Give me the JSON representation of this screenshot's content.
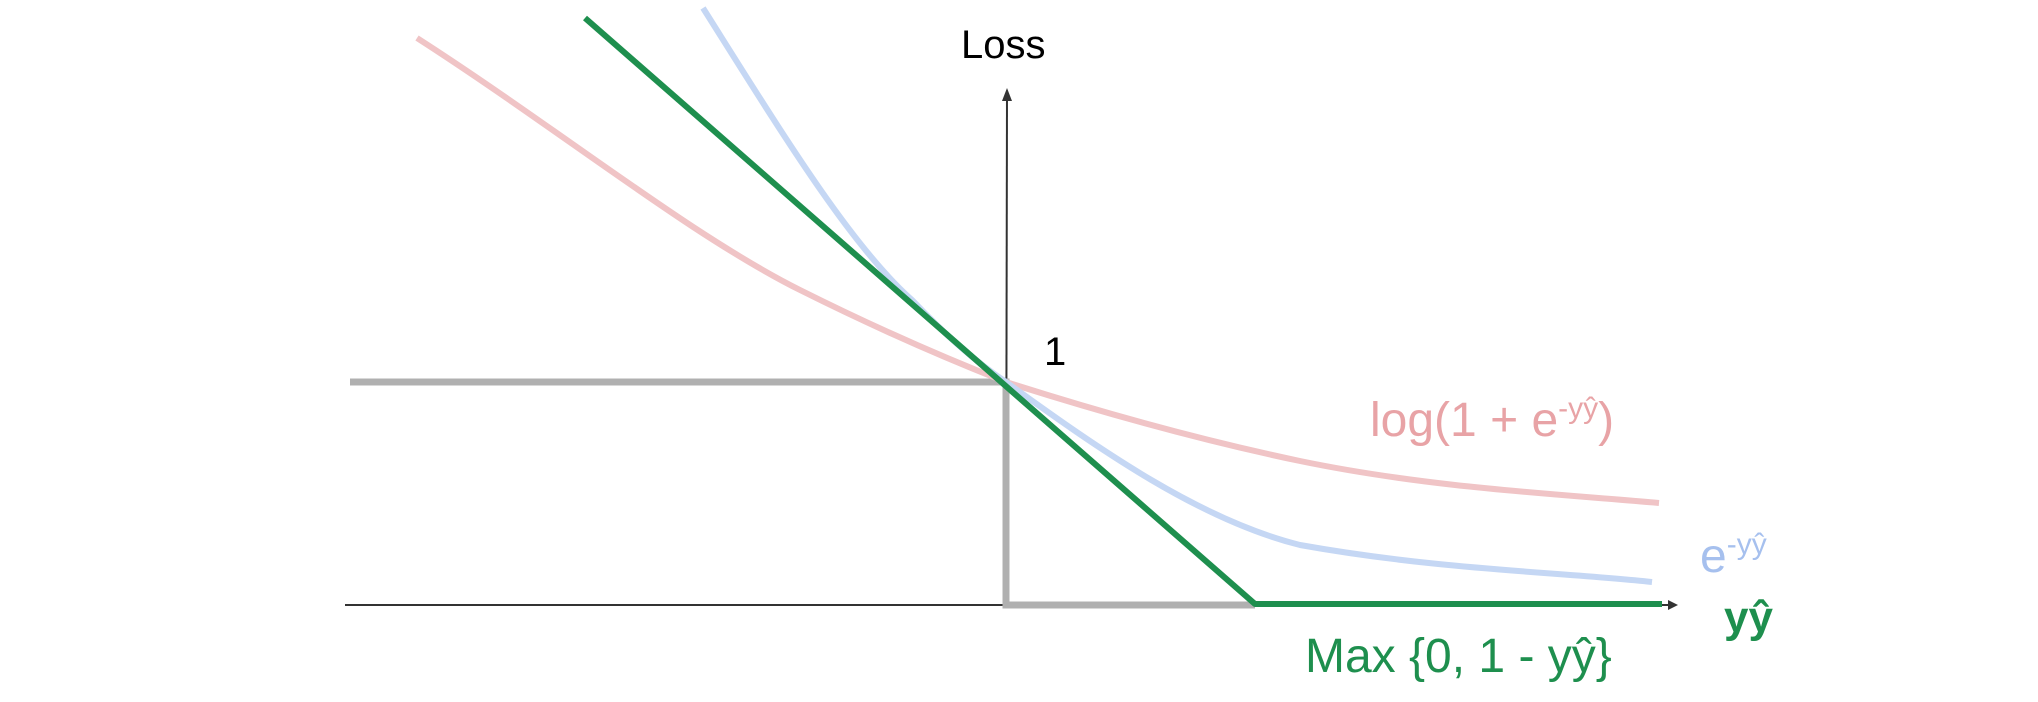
{
  "colors": {
    "logistic": "#f0c4c6",
    "logistic_text": "#e8a3a6",
    "exponential": "#c5d7f4",
    "exponential_text": "#a6c0ee",
    "hinge": "#1e8f4e",
    "zero_one": "#b0b0b0",
    "axis": "#333333"
  },
  "labels": {
    "y_axis": "Loss",
    "one": "1",
    "x_axis": "yŷ",
    "logistic_base": "log(1 + e",
    "logistic_exp": "-yŷ",
    "logistic_close": ")",
    "exponential_base": "e",
    "exponential_exp": "-yŷ",
    "hinge": "Max {0, 1 - yŷ}"
  },
  "icons": {
    "x_axis_arrow": "arrow-right-icon",
    "y_axis_arrow": "arrow-up-icon"
  }
}
